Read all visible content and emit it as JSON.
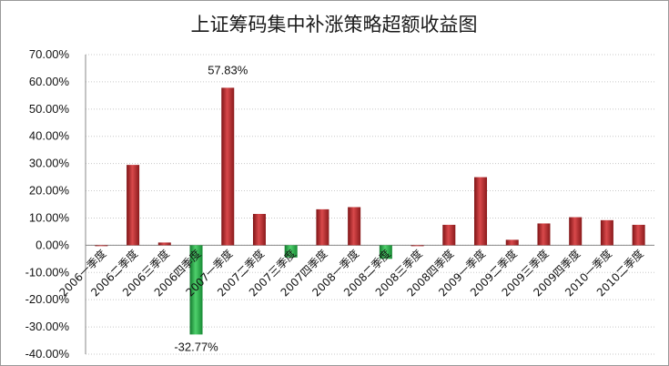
{
  "chart_data": {
    "type": "bar",
    "title": "上证筹码集中补涨策略超额收益图",
    "xlabel": "",
    "ylabel": "",
    "ylim": [
      -40,
      70
    ],
    "ytick_step": 10,
    "ytick_format": "percent_2dp",
    "grid": true,
    "legend": "none",
    "categories": [
      "2006一季度",
      "2006二季度",
      "2006三季度",
      "2006四季度",
      "2007一季度",
      "2007二季度",
      "2007三季度",
      "2007四季度",
      "2008一季度",
      "2008二季度",
      "2008三季度",
      "2008四季度",
      "2009一季度",
      "2009二季度",
      "2009三季度",
      "2009四季度",
      "2010一季度",
      "2010二季度"
    ],
    "series": [
      {
        "values": [
          0.0,
          29.5,
          1.0,
          -32.77,
          57.83,
          11.5,
          -4.5,
          13.2,
          14.0,
          -5.0,
          0.0,
          7.5,
          25.0,
          2.0,
          8.0,
          10.3,
          9.2,
          7.5
        ]
      }
    ],
    "annotations": [
      {
        "index": 4,
        "text": "57.83%"
      },
      {
        "index": 3,
        "text": "-32.77%"
      }
    ],
    "colors": {
      "positive": "#c0282b",
      "negative": "#2fb14e",
      "grid": "#c8c8c8"
    }
  }
}
